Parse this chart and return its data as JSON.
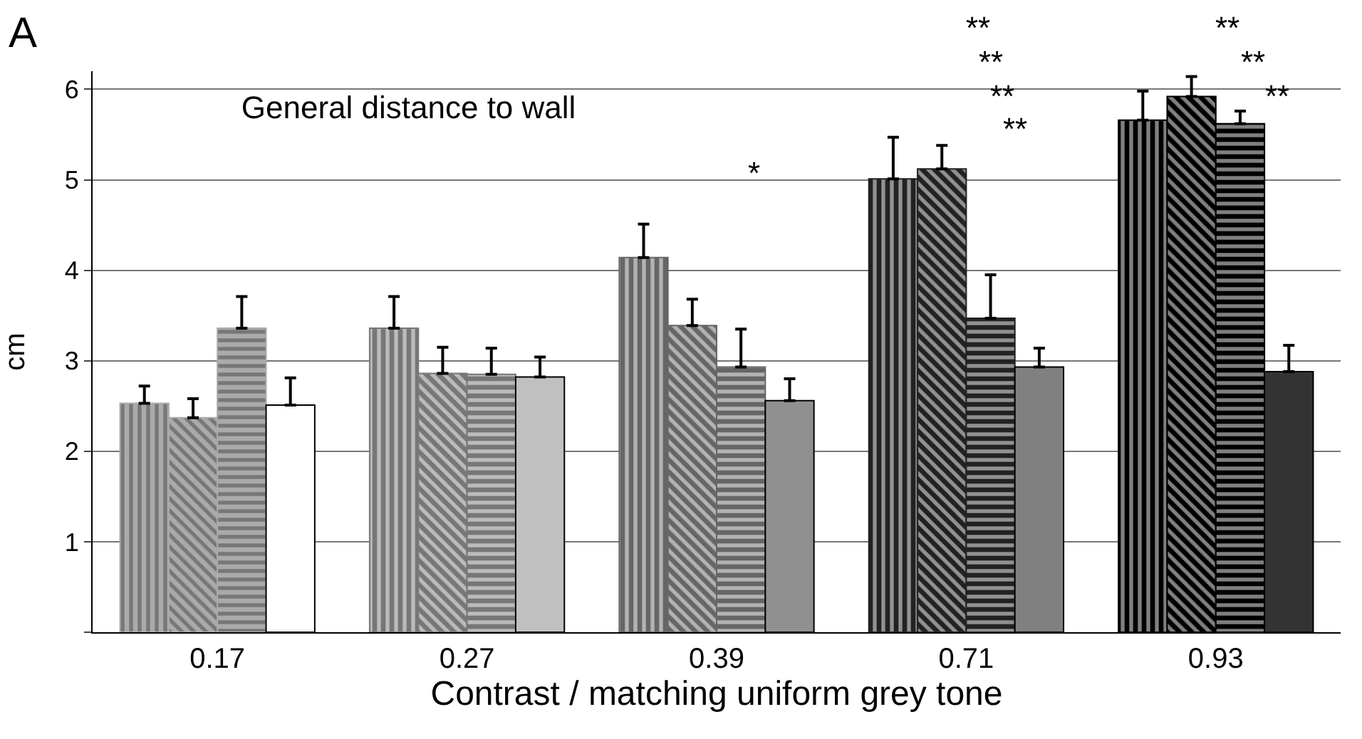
{
  "chart_data": {
    "type": "bar",
    "title": "General distance to wall",
    "xlabel": "Contrast / matching uniform grey tone",
    "ylabel": "cm",
    "categories": [
      "0.17",
      "0.27",
      "0.39",
      "0.71",
      "0.93"
    ],
    "series": [
      {
        "colors": [
          "#aaaaaa",
          "#777777",
          "#666666",
          "#222222",
          "#000000"
        ],
        "values": [
          2.53,
          3.36,
          4.14,
          5.01,
          5.66
        ],
        "errors": [
          [
            2.53,
            2.72
          ],
          [
            3.36,
            3.71
          ],
          [
            4.14,
            4.51
          ],
          [
            5.01,
            5.47
          ],
          [
            5.66,
            5.98
          ]
        ]
      },
      {
        "colors": [
          "#aaaaaa",
          "#777777",
          "#666666",
          "#222222",
          "#000000"
        ],
        "values": [
          2.37,
          2.86,
          3.39,
          5.12,
          5.92
        ],
        "errors": [
          [
            2.37,
            2.58
          ],
          [
            2.86,
            3.15
          ],
          [
            3.39,
            3.68
          ],
          [
            5.12,
            5.38
          ],
          [
            5.92,
            6.14
          ]
        ]
      },
      {
        "colors": [
          "#aaaaaa",
          "#777777",
          "#666666",
          "#222222",
          "#000000"
        ],
        "values": [
          3.36,
          2.85,
          2.93,
          3.47,
          5.62
        ],
        "errors": [
          [
            3.36,
            3.71
          ],
          [
            2.85,
            3.14
          ],
          [
            2.93,
            3.35
          ],
          [
            3.47,
            3.95
          ],
          [
            5.62,
            5.76
          ]
        ]
      },
      {
        "colors": [
          "#ffffff",
          "#c0c0c0",
          "#909090",
          "#808080",
          "#333333"
        ],
        "values": [
          2.51,
          2.82,
          2.56,
          2.93,
          2.88
        ],
        "errors": [
          [
            2.51,
            2.81
          ],
          [
            2.82,
            3.04
          ],
          [
            2.56,
            2.8
          ],
          [
            2.93,
            3.14
          ],
          [
            2.88,
            3.17
          ]
        ]
      }
    ],
    "ylim": [
      0,
      6.2
    ],
    "yticks": [
      {
        "value": 0,
        "label": null
      },
      1,
      2,
      3,
      4,
      5,
      6
    ],
    "grid": "y",
    "annotations": [
      "A",
      "*",
      "**",
      "**",
      "**",
      "**",
      "**",
      "**",
      "**"
    ]
  }
}
